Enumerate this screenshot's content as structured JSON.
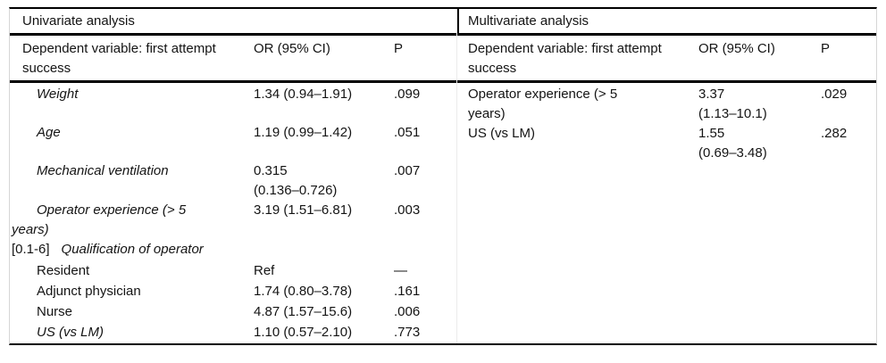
{
  "univariate": {
    "section_title": "Univariate analysis",
    "columns": {
      "dependent": "Dependent variable: first attempt success",
      "or": "OR (95% CI)",
      "p": "P"
    },
    "rows": [
      {
        "label": "Weight",
        "or": "1.34 (0.94–1.91)",
        "p": ".099"
      },
      {
        "label": "Age",
        "or": "1.19 (0.99–1.42)",
        "p": ".051"
      },
      {
        "label": "Mechanical ventilation",
        "or_line1": "0.315",
        "or_line2": "(0.136–0.726)",
        "p": ".007"
      },
      {
        "label_line1": "Operator experience (> 5",
        "label_line2": "years)",
        "or": "3.19 (1.51–6.81)",
        "p": ".003"
      },
      {
        "prefix": "[0.1-6]",
        "label": "Qualification of operator",
        "or": "",
        "p": ""
      },
      {
        "label": "Resident",
        "or": "Ref",
        "p": "—"
      },
      {
        "label": "Adjunct physician",
        "or": "1.74 (0.80–3.78)",
        "p": ".161"
      },
      {
        "label": "Nurse",
        "or": "4.87 (1.57–15.6)",
        "p": ".006"
      },
      {
        "label": "US (vs LM)",
        "or": "1.10 (0.57–2.10)",
        "p": ".773"
      }
    ]
  },
  "multivariate": {
    "section_title": "Multivariate analysis",
    "columns": {
      "dependent": "Dependent variable: first attempt success",
      "or": "OR (95% CI)",
      "p": "P"
    },
    "rows": [
      {
        "label_line1": "Operator experience (> 5",
        "label_line2": "years)",
        "or_line1": "3.37",
        "or_line2": "(1.13–10.1)",
        "p": ".029"
      },
      {
        "label": "US (vs LM)",
        "or_line1": "1.55",
        "or_line2": "(0.69–3.48)",
        "p": ".282"
      }
    ]
  }
}
